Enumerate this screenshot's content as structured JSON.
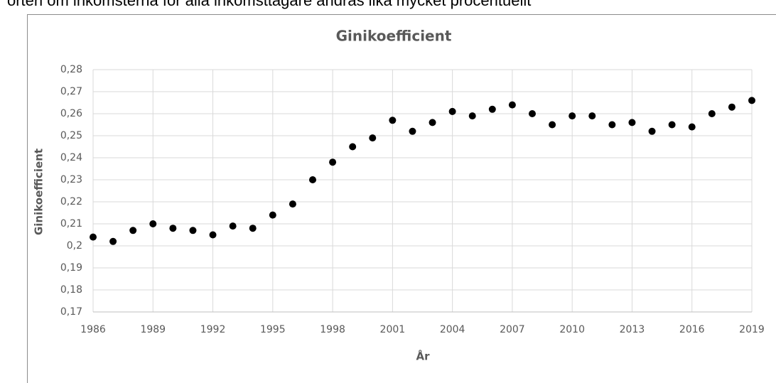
{
  "text_above": "örten om inkomsterna för alla inkomsttagare ändras lika mycket procentuellt",
  "chart_data": {
    "type": "scatter",
    "title": "Ginikoefficient",
    "x_label": "År",
    "y_label": "Ginikoefficient",
    "x": [
      1986,
      1987,
      1988,
      1989,
      1990,
      1991,
      1992,
      1993,
      1994,
      1995,
      1996,
      1997,
      1998,
      1999,
      2000,
      2001,
      2002,
      2003,
      2004,
      2005,
      2006,
      2007,
      2008,
      2009,
      2010,
      2011,
      2012,
      2013,
      2014,
      2015,
      2016,
      2017,
      2018,
      2019
    ],
    "values": [
      0.204,
      0.202,
      0.207,
      0.21,
      0.208,
      0.207,
      0.205,
      0.209,
      0.208,
      0.214,
      0.219,
      0.23,
      0.238,
      0.245,
      0.249,
      0.257,
      0.252,
      0.256,
      0.261,
      0.259,
      0.262,
      0.264,
      0.26,
      0.255,
      0.259,
      0.259,
      0.255,
      0.256,
      0.252,
      0.255,
      0.254,
      0.26,
      0.263,
      0.266
    ],
    "color": "#000000",
    "xlim": [
      1986,
      2019
    ],
    "xticks": [
      1986,
      1989,
      1992,
      1995,
      1998,
      2001,
      2004,
      2007,
      2010,
      2013,
      2016,
      2019
    ],
    "ylim": [
      0.17,
      0.28
    ],
    "yticks": [
      {
        "value": 0.17,
        "label": "0,17"
      },
      {
        "value": 0.18,
        "label": "0,18"
      },
      {
        "value": 0.19,
        "label": "0,19"
      },
      {
        "value": 0.2,
        "label": "0,2"
      },
      {
        "value": 0.21,
        "label": "0,21"
      },
      {
        "value": 0.22,
        "label": "0,22"
      },
      {
        "value": 0.23,
        "label": "0,23"
      },
      {
        "value": 0.24,
        "label": "0,24"
      },
      {
        "value": 0.25,
        "label": "0,25"
      },
      {
        "value": 0.26,
        "label": "0,26"
      },
      {
        "value": 0.27,
        "label": "0,27"
      },
      {
        "value": 0.28,
        "label": "0,28"
      }
    ],
    "grid": true
  }
}
